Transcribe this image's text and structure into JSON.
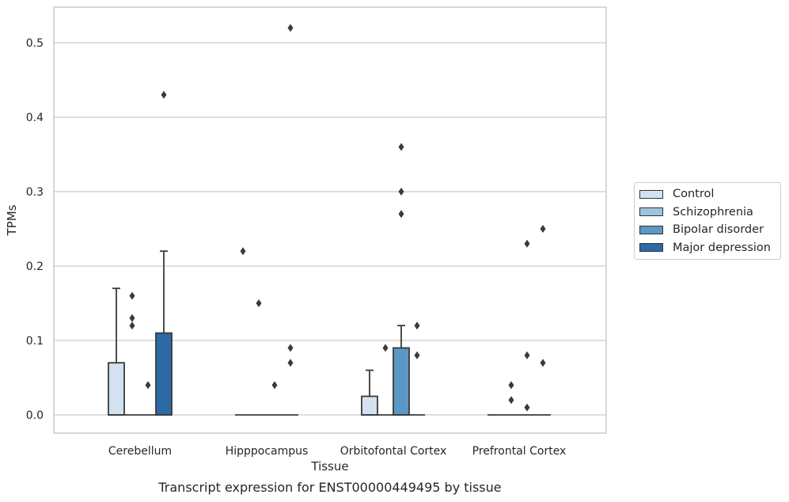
{
  "chart_data": {
    "type": "box",
    "title": "Transcript expression for ENST00000449495 by tissue",
    "xlabel": "Tissue",
    "ylabel": "TPMs",
    "ylim": [
      -0.025,
      0.548
    ],
    "yticks": [
      "0.0",
      "0.1",
      "0.2",
      "0.3",
      "0.4",
      "0.5"
    ],
    "ytick_values": [
      0,
      0.1,
      0.2,
      0.3,
      0.4,
      0.5
    ],
    "grid": true,
    "legend_position": "right",
    "categories": [
      "Cerebellum",
      "Hipppocampus",
      "Orbitofontal Cortex",
      "Prefrontal Cortex"
    ],
    "series": [
      {
        "name": "Control",
        "color": "#d3e2f0",
        "boxes": [
          {
            "q1": 0,
            "median": 0,
            "q3": 0.07,
            "whislo": 0,
            "whishi": 0.17,
            "fliers": []
          },
          {
            "q1": 0,
            "median": 0,
            "q3": 0,
            "whislo": 0,
            "whishi": 0,
            "fliers": [
              0.22
            ]
          },
          {
            "q1": 0,
            "median": 0,
            "q3": 0.025,
            "whislo": 0,
            "whishi": 0.06,
            "fliers": []
          },
          {
            "q1": 0,
            "median": 0,
            "q3": 0,
            "whislo": 0,
            "whishi": 0,
            "fliers": []
          }
        ]
      },
      {
        "name": "Schizophrenia",
        "color": "#9dc3df",
        "boxes": [
          {
            "q1": 0,
            "median": 0,
            "q3": 0,
            "whislo": 0,
            "whishi": 0,
            "fliers": [
              0.16,
              0.13,
              0.12
            ]
          },
          {
            "q1": 0,
            "median": 0,
            "q3": 0,
            "whislo": 0,
            "whishi": 0,
            "fliers": [
              0.15
            ]
          },
          {
            "q1": 0,
            "median": 0,
            "q3": 0,
            "whislo": 0,
            "whishi": 0,
            "fliers": [
              0.09
            ]
          },
          {
            "q1": 0,
            "median": 0,
            "q3": 0,
            "whislo": 0,
            "whishi": 0,
            "fliers": [
              0.04,
              0.02
            ]
          }
        ]
      },
      {
        "name": "Bipolar disorder",
        "color": "#5b98c5",
        "boxes": [
          {
            "q1": 0,
            "median": 0,
            "q3": 0,
            "whislo": 0,
            "whishi": 0,
            "fliers": [
              0.04
            ]
          },
          {
            "q1": 0,
            "median": 0,
            "q3": 0,
            "whislo": 0,
            "whishi": 0,
            "fliers": [
              0.04
            ]
          },
          {
            "q1": 0,
            "median": 0,
            "q3": 0.09,
            "whislo": 0,
            "whishi": 0.12,
            "fliers": [
              0.36,
              0.3,
              0.27
            ]
          },
          {
            "q1": 0,
            "median": 0,
            "q3": 0,
            "whislo": 0,
            "whishi": 0,
            "fliers": [
              0.23,
              0.08,
              0.01
            ]
          }
        ]
      },
      {
        "name": "Major depression",
        "color": "#2c6aa5",
        "boxes": [
          {
            "q1": 0,
            "median": 0,
            "q3": 0.11,
            "whislo": 0,
            "whishi": 0.22,
            "fliers": [
              0.43
            ]
          },
          {
            "q1": 0,
            "median": 0,
            "q3": 0,
            "whislo": 0,
            "whishi": 0,
            "fliers": [
              0.52,
              0.09,
              0.07
            ]
          },
          {
            "q1": 0,
            "median": 0,
            "q3": 0,
            "whislo": 0,
            "whishi": 0,
            "fliers": [
              0.12,
              0.08
            ]
          },
          {
            "q1": 0,
            "median": 0,
            "q3": 0,
            "whislo": 0,
            "whishi": 0,
            "fliers": [
              0.25,
              0.07
            ]
          }
        ]
      }
    ]
  }
}
